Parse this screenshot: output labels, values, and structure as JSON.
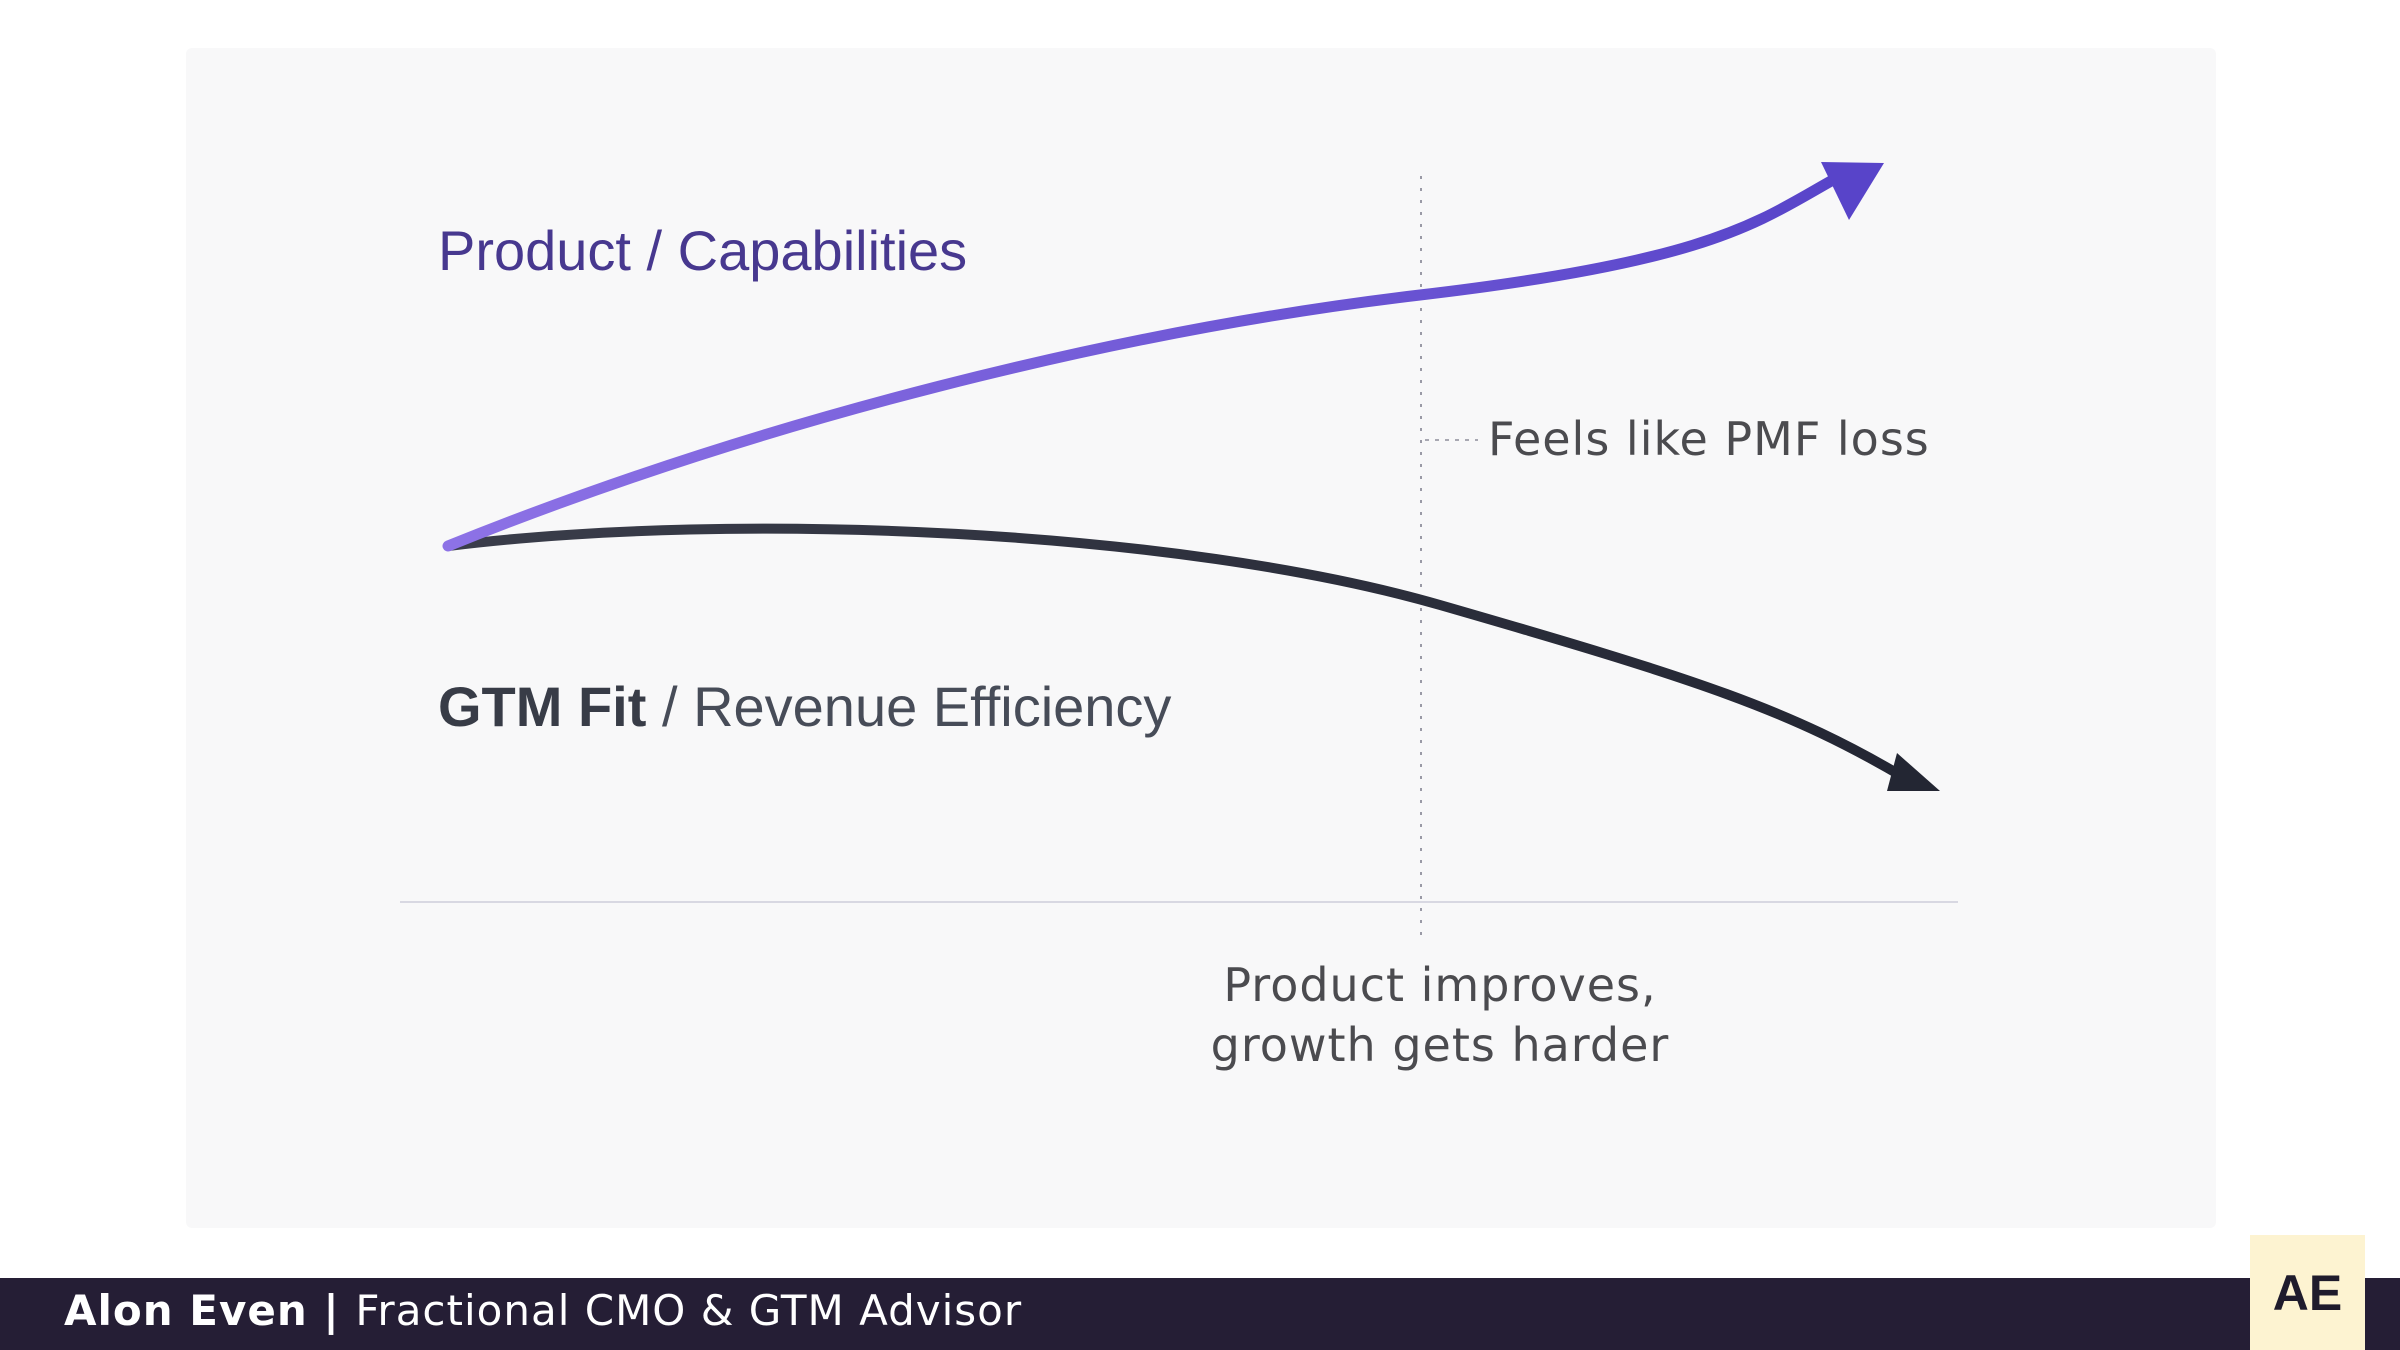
{
  "diagram": {
    "series": [
      {
        "name": "Product / Capabilities",
        "trend": "rising",
        "color": "#7b5fd9"
      },
      {
        "name": "GTM Fit / Revenue Efficiency",
        "trend": "declining",
        "color": "#2a2d38"
      }
    ],
    "labels": {
      "product": "Product / Capabilities",
      "gtm_strong": "GTM Fit",
      "gtm_rest": " / Revenue Efficiency",
      "pmf": "Feels like PMF loss",
      "improves_line1": "Product improves,",
      "improves_line2": "growth gets harder"
    }
  },
  "footer": {
    "name": "Alon Even",
    "separator": " | ",
    "title": "Fractional CMO & GTM Advisor",
    "badge": "AE"
  },
  "colors": {
    "product_label": "#47388f",
    "gtm_label": "#474c58",
    "footer_bg": "#251e35",
    "badge_bg": "#fdf3d1"
  }
}
